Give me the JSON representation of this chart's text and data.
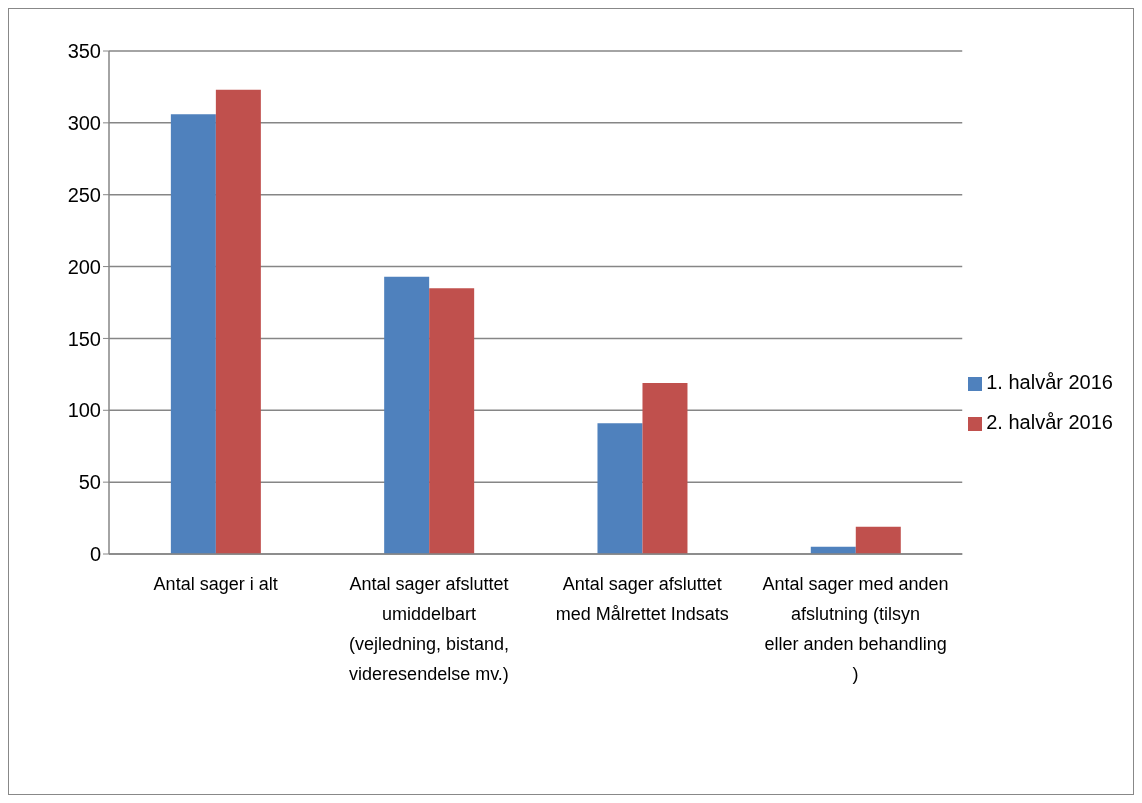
{
  "chart_data": {
    "type": "bar",
    "categories": [
      "Antal sager i alt",
      "Antal sager afsluttet umiddelbart (vejledning, bistand, videresendelse mv.)",
      "Antal sager afsluttet med Målrettet Indsats",
      "Antal sager med anden afslutning (tilsyn eller anden behandling )"
    ],
    "series": [
      {
        "name": "1. halvår 2016",
        "color": "#4f81bd",
        "values": [
          306,
          193,
          91,
          5
        ]
      },
      {
        "name": "2. halvår 2016",
        "color": "#c0504d",
        "values": [
          323,
          185,
          119,
          19
        ]
      }
    ],
    "ylim": [
      0,
      350
    ],
    "yticks": [
      0,
      50,
      100,
      150,
      200,
      250,
      300,
      350
    ],
    "grid": "y",
    "legend": "right"
  }
}
